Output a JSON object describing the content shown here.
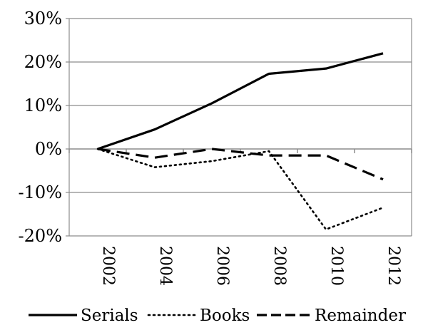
{
  "chart_data": {
    "type": "line",
    "categories": [
      "2002",
      "2004",
      "2006",
      "2008",
      "2010",
      "2012"
    ],
    "x": [
      2002,
      2004,
      2006,
      2008,
      2010,
      2012
    ],
    "ylim": [
      -20,
      30
    ],
    "yticks": [
      -20,
      -10,
      0,
      10,
      20,
      30
    ],
    "ytick_labels": [
      "-20%",
      "-10%",
      "0%",
      "10%",
      "20%",
      "30%"
    ],
    "grid": true,
    "legend": "bottom",
    "series": [
      {
        "name": "Serials",
        "style": "solid",
        "color": "#000000",
        "values": [
          0,
          4.5,
          10.5,
          17.3,
          18.5,
          22
        ]
      },
      {
        "name": "Books",
        "style": "dotted",
        "color": "#000000",
        "values": [
          0,
          -4.2,
          -2.8,
          -0.5,
          -18.5,
          -13.5
        ]
      },
      {
        "name": "Remainder",
        "style": "dashed",
        "color": "#000000",
        "values": [
          0,
          -2,
          0,
          -1.5,
          -1.5,
          -7
        ]
      }
    ]
  }
}
